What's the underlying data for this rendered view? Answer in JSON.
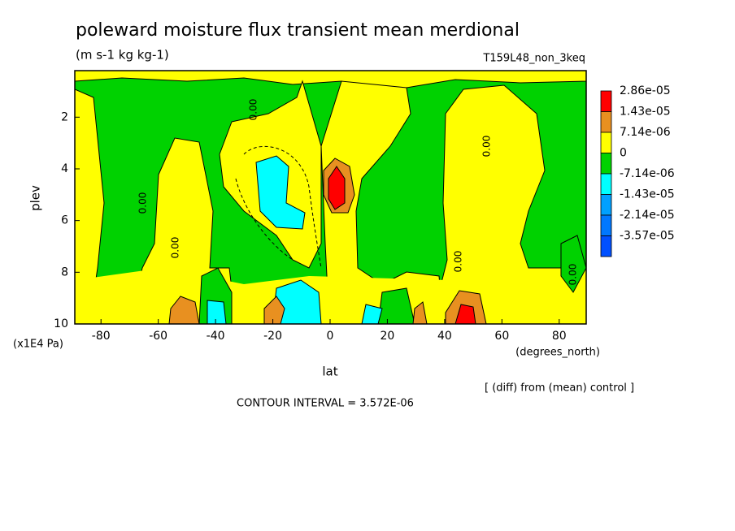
{
  "chart_data": {
    "type": "contour",
    "title": "poleward moisture flux transient mean merdional",
    "subtitle": "(m s-1 kg kg-1)",
    "run_label": "T159L48_non_3keq",
    "xlabel": "lat",
    "xunits": "(degrees_north)",
    "ylabel": "plev",
    "yunits": "(x1E4 Pa)",
    "note": "[ (diff) from (mean) control ]",
    "contour_interval": "CONTOUR INTERVAL = 3.572E-06",
    "contour_label": "0.00",
    "xlim": [
      -90,
      90
    ],
    "xticks": [
      -80,
      -60,
      -40,
      -20,
      0,
      20,
      40,
      60,
      80
    ],
    "ylim": [
      10,
      0.2
    ],
    "yticks": [
      2,
      4,
      6,
      8,
      10
    ],
    "levels": [
      {
        "value": 2.86e-05,
        "label": "2.86e-05"
      },
      {
        "value": 1.43e-05,
        "label": "1.43e-05"
      },
      {
        "value": 7.14e-06,
        "label": "7.14e-06"
      },
      0,
      {
        "value": -7.14e-06,
        "label": "-7.14e-06"
      },
      {
        "value": -1.43e-05,
        "label": "-1.43e-05"
      },
      {
        "value": -2.14e-05,
        "label": "-2.14e-05"
      },
      {
        "value": -3.57e-05,
        "label": "-3.57e-05"
      }
    ],
    "level_colors": [
      "#ff0000",
      "#e89020",
      "#ffff00",
      "#00d200",
      "#00ffff",
      "#00a0ff",
      "#0078ff",
      "#0050ff"
    ]
  }
}
